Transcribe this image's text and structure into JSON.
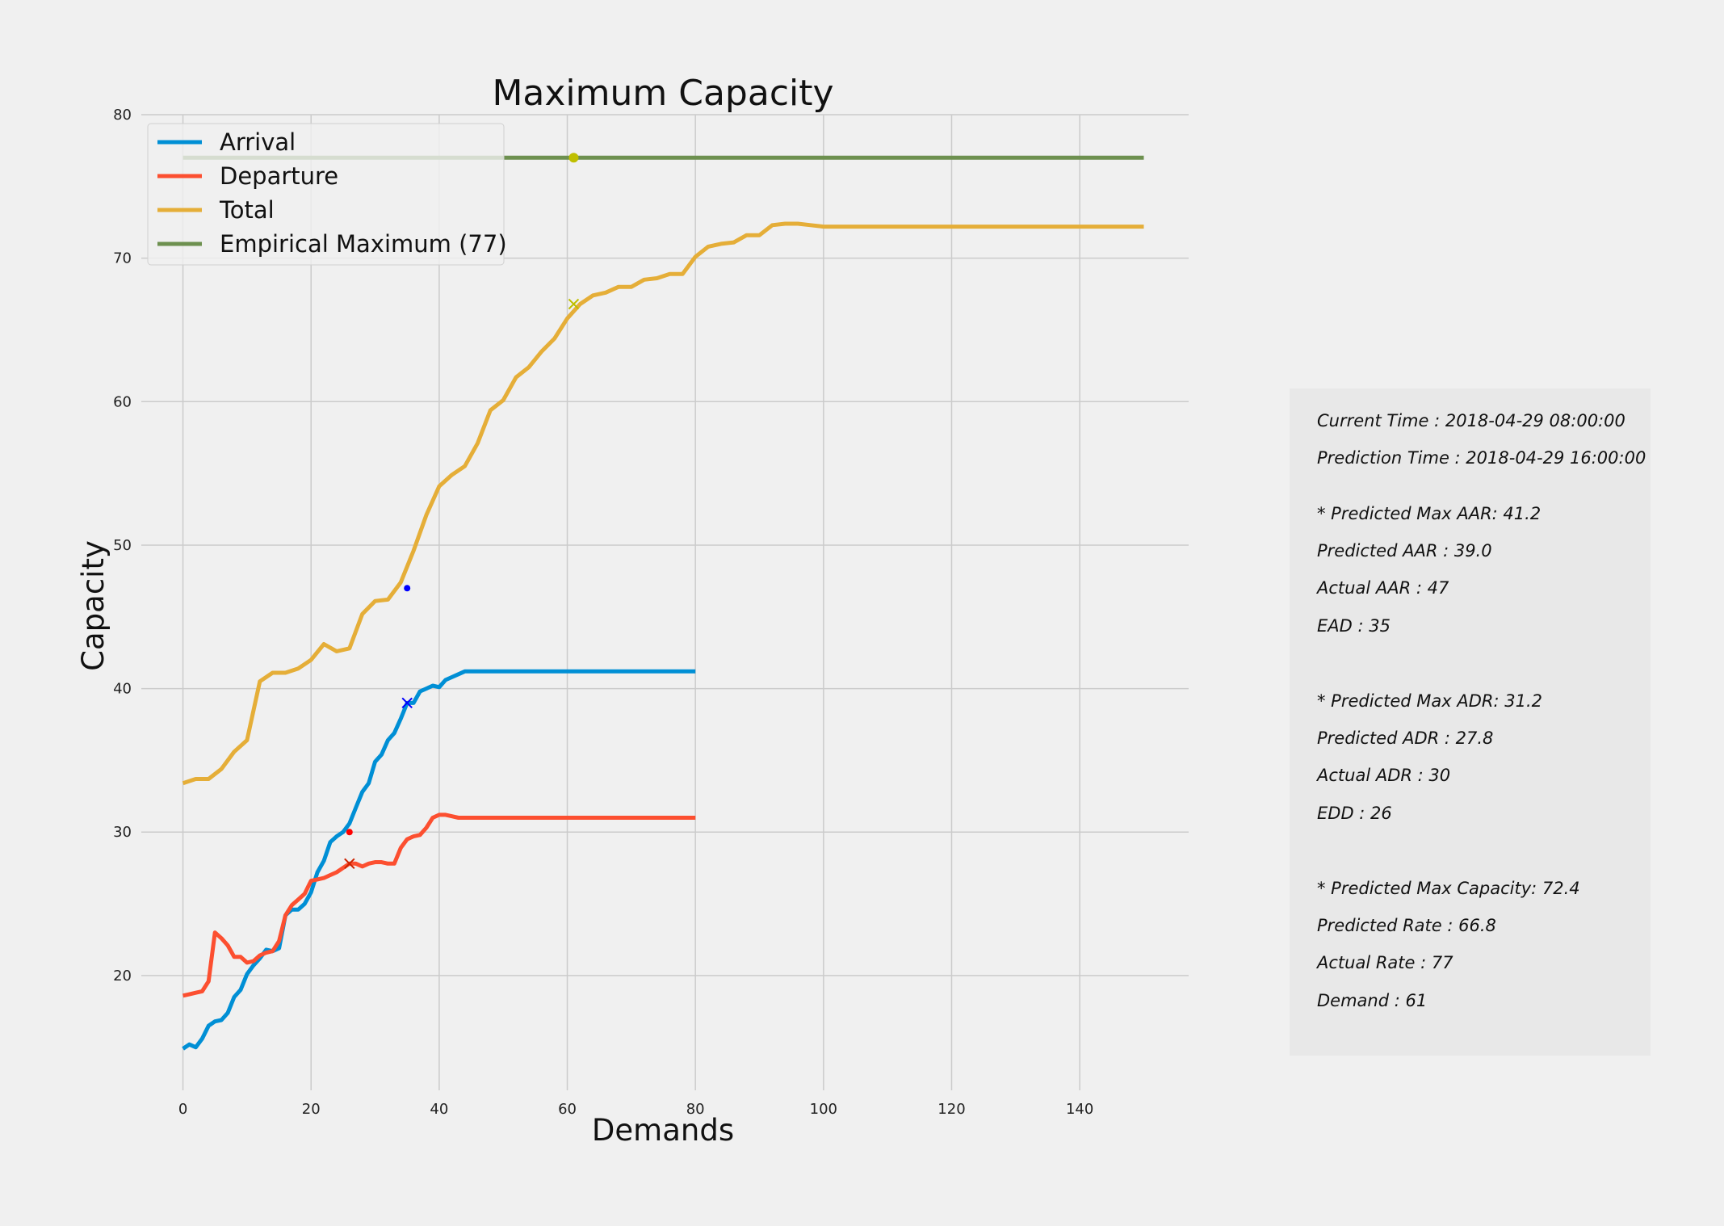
{
  "chart_data": {
    "type": "line",
    "title": "Maximum Capacity",
    "xlabel": "Demands",
    "ylabel": "Capacity",
    "xlim": [
      -6.5,
      157
    ],
    "ylim": [
      12,
      80
    ],
    "xticks": [
      0,
      20,
      40,
      60,
      80,
      100,
      120,
      140
    ],
    "yticks": [
      20,
      30,
      40,
      50,
      60,
      70,
      80
    ],
    "grid": true,
    "legend_position": "top-left",
    "series": [
      {
        "name": "Arrival",
        "color": "#008fd5",
        "x": [
          0,
          1,
          2,
          3,
          4,
          5,
          6,
          7,
          8,
          9,
          10,
          11,
          12,
          13,
          14,
          15,
          16,
          17,
          18,
          19,
          20,
          21,
          22,
          23,
          24,
          25,
          26,
          27,
          28,
          29,
          30,
          31,
          32,
          33,
          34,
          35,
          36,
          37,
          38,
          39,
          40,
          41,
          42,
          43,
          44,
          45,
          50,
          60,
          70,
          80
        ],
        "y": [
          14.9,
          15.2,
          15.0,
          15.6,
          16.5,
          16.8,
          16.9,
          17.4,
          18.5,
          19.0,
          20.1,
          20.7,
          21.2,
          21.8,
          21.7,
          21.9,
          24.2,
          24.6,
          24.6,
          25.0,
          25.8,
          27.2,
          28.0,
          29.3,
          29.7,
          30.0,
          30.6,
          31.7,
          32.8,
          33.4,
          34.9,
          35.4,
          36.4,
          36.9,
          37.9,
          39.0,
          39.0,
          39.8,
          40.0,
          40.2,
          40.1,
          40.6,
          40.8,
          41.0,
          41.2,
          41.2,
          41.2,
          41.2,
          41.2,
          41.2
        ]
      },
      {
        "name": "Departure",
        "color": "#fc4f30",
        "x": [
          0,
          1,
          2,
          3,
          4,
          5,
          6,
          7,
          8,
          9,
          10,
          11,
          12,
          13,
          14,
          15,
          16,
          17,
          18,
          19,
          20,
          21,
          22,
          23,
          24,
          25,
          26,
          27,
          28,
          29,
          30,
          31,
          32,
          33,
          34,
          35,
          36,
          37,
          38,
          39,
          40,
          41,
          42,
          43,
          44,
          45,
          50,
          60,
          70,
          80
        ],
        "y": [
          18.6,
          18.7,
          18.8,
          18.9,
          19.6,
          23.0,
          22.6,
          22.1,
          21.3,
          21.3,
          20.9,
          21.0,
          21.4,
          21.6,
          21.7,
          22.4,
          24.2,
          24.9,
          25.3,
          25.7,
          26.6,
          26.7,
          26.8,
          27.0,
          27.2,
          27.5,
          27.8,
          27.8,
          27.6,
          27.8,
          27.9,
          27.9,
          27.8,
          27.8,
          28.9,
          29.5,
          29.7,
          29.8,
          30.3,
          31.0,
          31.2,
          31.2,
          31.1,
          31.0,
          31.0,
          31.0,
          31.0,
          31.0,
          31.0,
          31.0
        ]
      },
      {
        "name": "Total",
        "color": "#e5ae38",
        "x": [
          0,
          2,
          4,
          6,
          8,
          10,
          12,
          14,
          16,
          18,
          20,
          22,
          24,
          26,
          28,
          30,
          32,
          34,
          36,
          38,
          40,
          42,
          44,
          46,
          48,
          50,
          52,
          54,
          56,
          58,
          60,
          62,
          64,
          66,
          68,
          70,
          72,
          74,
          76,
          78,
          80,
          82,
          84,
          86,
          88,
          90,
          92,
          94,
          96,
          98,
          100,
          110,
          120,
          130,
          140,
          150
        ],
        "y": [
          33.4,
          33.7,
          33.7,
          34.4,
          35.6,
          36.4,
          40.5,
          41.1,
          41.1,
          41.4,
          42.0,
          43.1,
          42.6,
          42.8,
          45.2,
          46.1,
          46.2,
          47.4,
          49.6,
          52.1,
          54.1,
          54.9,
          55.5,
          57.1,
          59.4,
          60.1,
          61.7,
          62.4,
          63.5,
          64.4,
          65.8,
          66.8,
          67.4,
          67.6,
          68.0,
          68.0,
          68.5,
          68.6,
          68.9,
          68.9,
          70.1,
          70.8,
          71.0,
          71.1,
          71.6,
          71.6,
          72.3,
          72.4,
          72.4,
          72.3,
          72.2,
          72.2,
          72.2,
          72.2,
          72.2,
          72.2
        ]
      },
      {
        "name": "Empirical Maximum (77)",
        "color": "#6d904f",
        "x": [
          0,
          150
        ],
        "y": [
          77,
          77
        ]
      }
    ],
    "markers": [
      {
        "x": 35,
        "y": 47.0,
        "shape": "dot",
        "color": "#0000ff"
      },
      {
        "x": 35,
        "y": 39.0,
        "shape": "x",
        "color": "#0000ff"
      },
      {
        "x": 26,
        "y": 30.0,
        "shape": "dot",
        "color": "#ff0000"
      },
      {
        "x": 26,
        "y": 27.8,
        "shape": "x",
        "color": "#cc2200"
      },
      {
        "x": 61,
        "y": 77.0,
        "shape": "dot",
        "color": "#bfbf00"
      },
      {
        "x": 61,
        "y": 66.8,
        "shape": "x",
        "color": "#bfbf00"
      }
    ]
  },
  "info_panel": {
    "current_time": "Current Time : 2018-04-29 08:00:00",
    "prediction_time": "Prediction Time : 2018-04-29 16:00:00",
    "max_aar": "* Predicted Max AAR: 41.2",
    "predicted_aar": "Predicted AAR : 39.0",
    "actual_aar": "Actual AAR : 47",
    "ead": "EAD : 35",
    "max_adr": "* Predicted Max ADR: 31.2",
    "predicted_adr": "Predicted ADR : 27.8",
    "actual_adr": "Actual ADR : 30",
    "edd": "EDD : 26",
    "max_capacity": "* Predicted Max Capacity: 72.4",
    "predicted_rate": "Predicted Rate : 66.8",
    "actual_rate": "Actual Rate : 77",
    "demand": "Demand : 61"
  }
}
